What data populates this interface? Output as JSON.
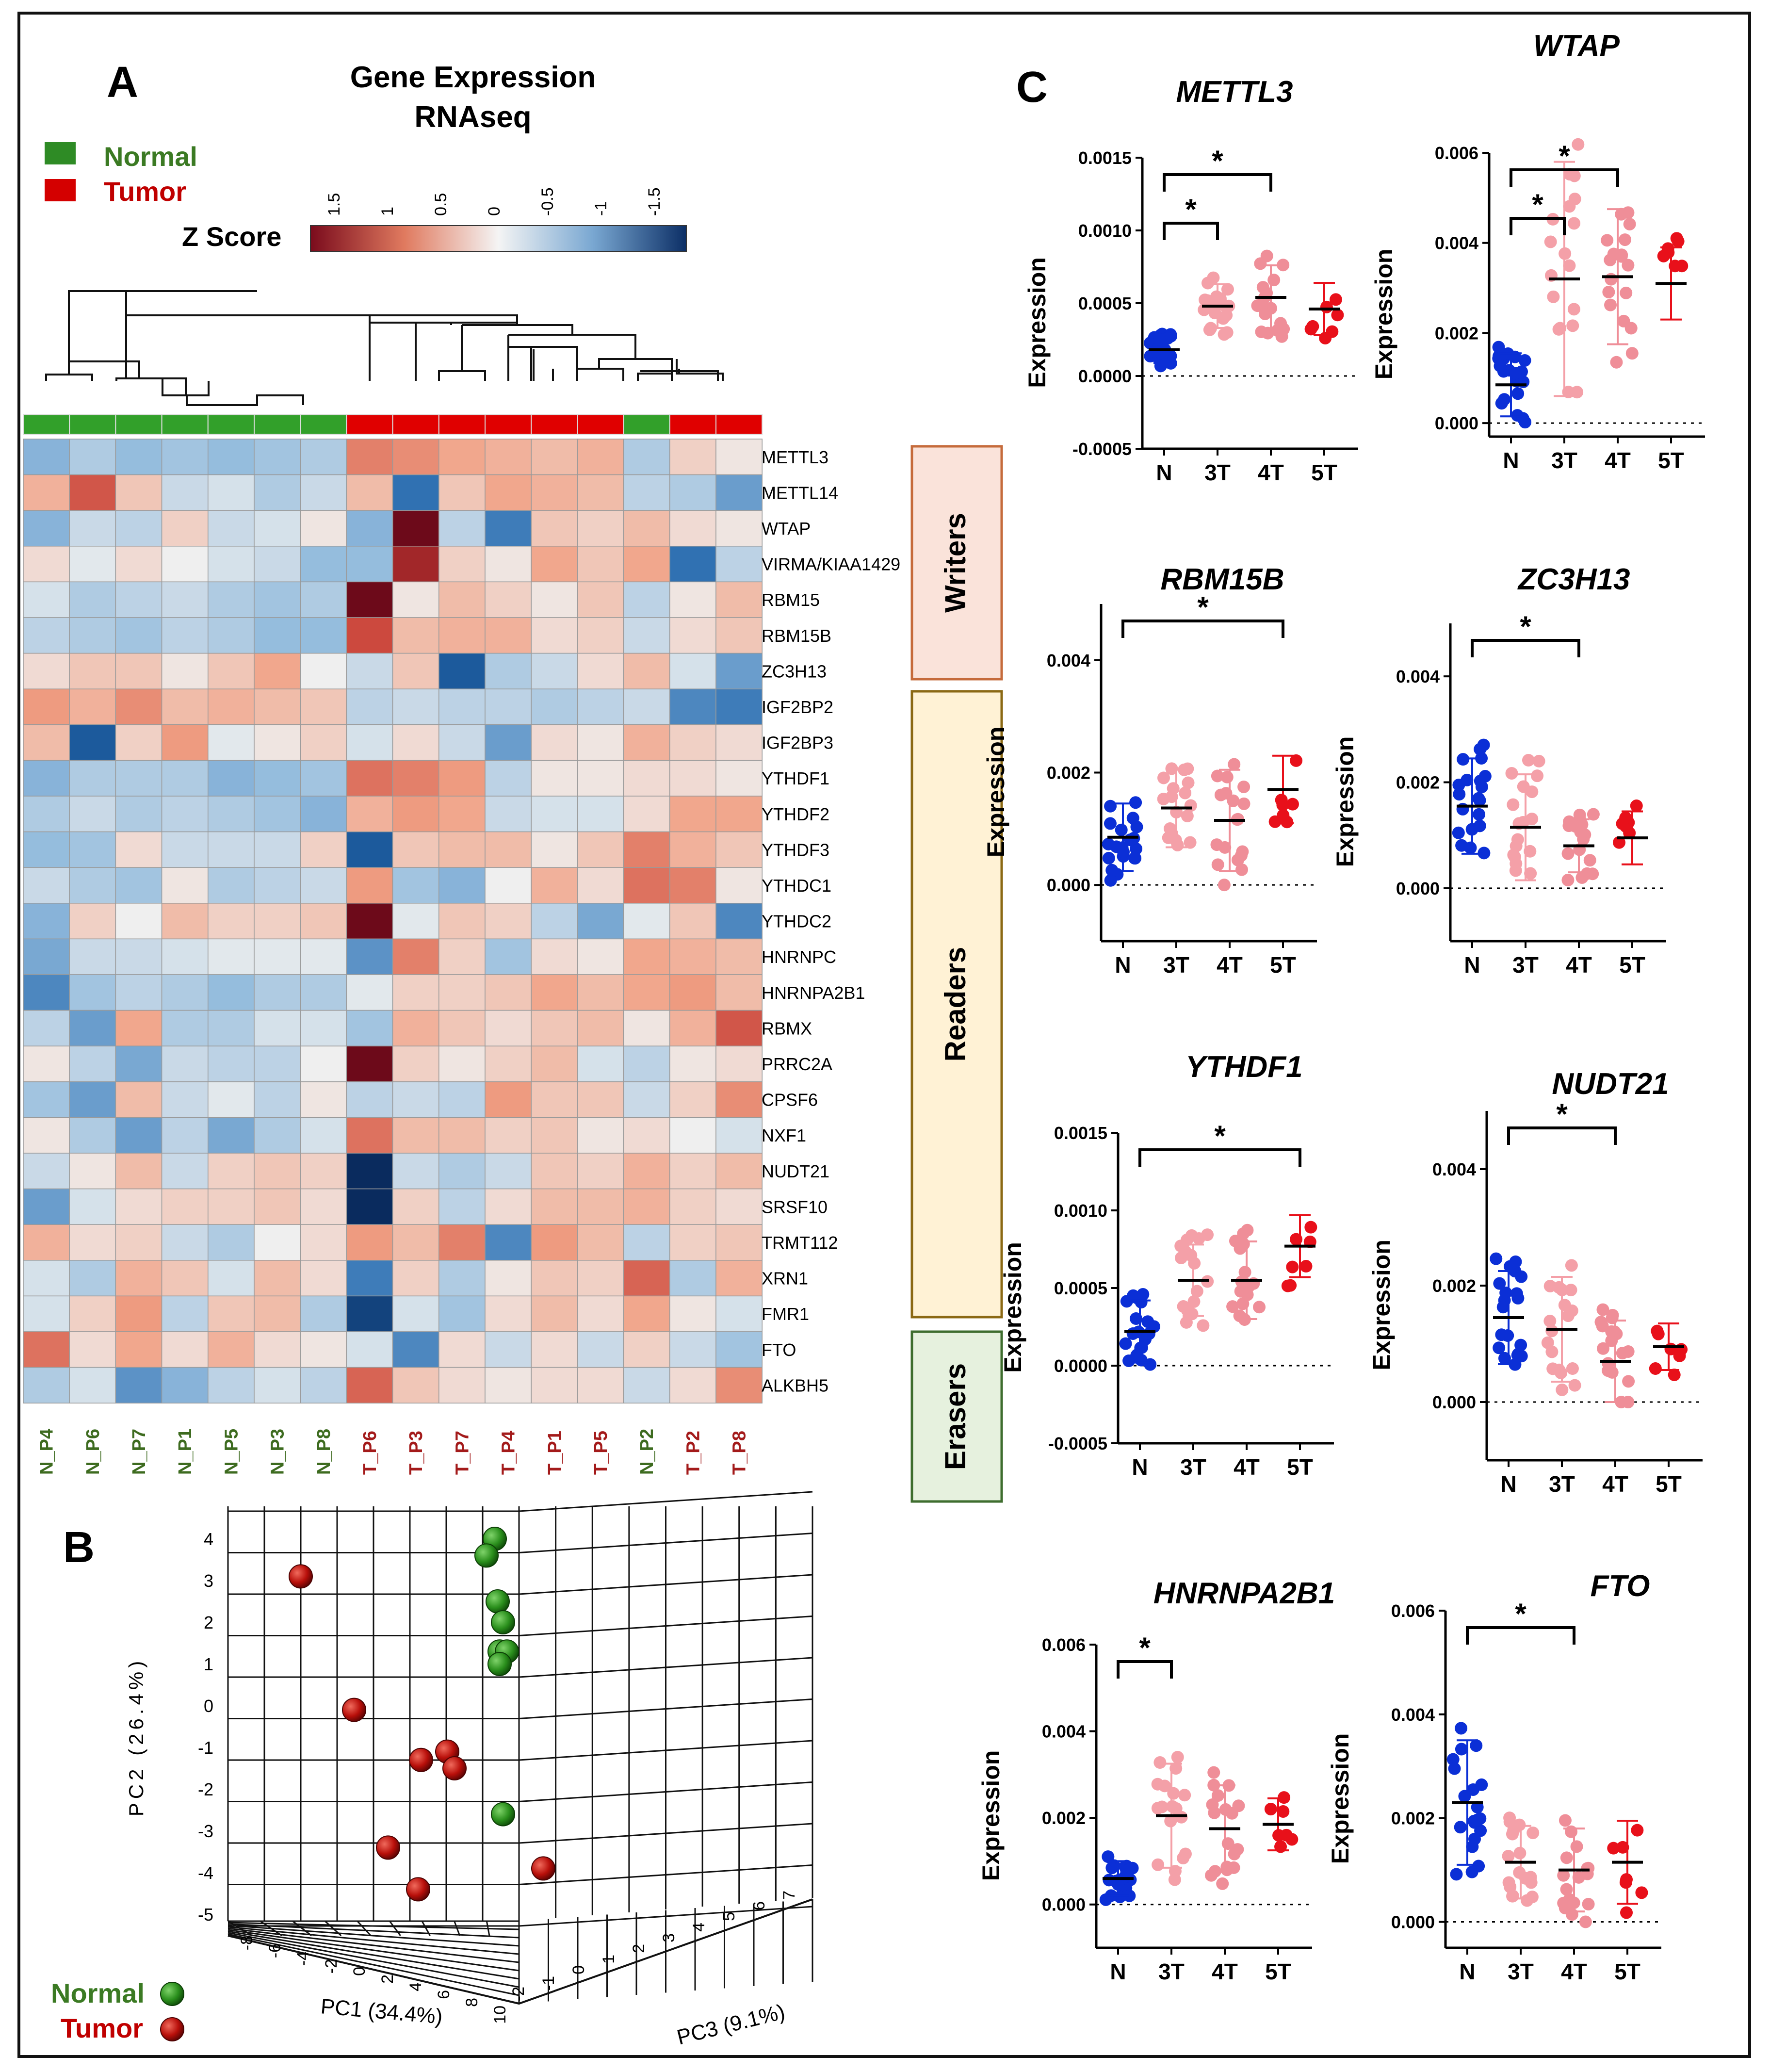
{
  "figure": {
    "panel_a_label": "A",
    "panel_b_label": "B",
    "panel_c_label": "C",
    "heatmap_title_line1": "Gene Expression",
    "heatmap_title_line2": "RNAseq",
    "legend_normal": "Normal",
    "legend_tumor": "Tumor",
    "zscore_label": "Z Score",
    "zscore_ticks": [
      "1.5",
      "1",
      "0.5",
      "0",
      "-0.5",
      "-1",
      "-1.5"
    ],
    "group_writers": "Writers",
    "group_readers": "Readers",
    "group_erasers": "Erasers",
    "colors": {
      "normal": "#2ca02c",
      "tumor": "#d00000",
      "n_dots": "#0b2fd6",
      "t3": "#f4a0a8",
      "t4": "#ef8e98",
      "t5": "#e8101a"
    }
  },
  "chart_data": [
    {
      "type": "heatmap",
      "title": "Gene Expression RNAseq",
      "genes": [
        "METTL3",
        "METTL14",
        "WTAP",
        "VIRMA/KIAA1429",
        "RBM15",
        "RBM15B",
        "ZC3H13",
        "IGF2BP2",
        "IGF2BP3",
        "YTHDF1",
        "YTHDF2",
        "YTHDF3",
        "YTHDC1",
        "YTHDC2",
        "HNRNPC",
        "HNRNPA2B1",
        "RBMX",
        "PRRC2A",
        "CPSF6",
        "NXF1",
        "NUDT21",
        "SRSF10",
        "TRMT112",
        "XRN1",
        "FMR1",
        "FTO",
        "ALKBH5"
      ],
      "samples": [
        "N_P4",
        "N_P6",
        "N_P7",
        "N_P1",
        "N_P5",
        "N_P3",
        "N_P8",
        "T_P6",
        "T_P3",
        "T_P7",
        "T_P4",
        "T_P1",
        "T_P5",
        "N_P2",
        "T_P2",
        "T_P8"
      ],
      "sample_groups": [
        "Normal",
        "Normal",
        "Normal",
        "Normal",
        "Normal",
        "Normal",
        "Normal",
        "Tumor",
        "Tumor",
        "Tumor",
        "Tumor",
        "Tumor",
        "Tumor",
        "Normal",
        "Tumor",
        "Tumor"
      ],
      "color_range": [
        -1.5,
        1.5
      ],
      "values": [
        [
          -0.8,
          -0.5,
          -0.7,
          -0.6,
          -0.7,
          -0.6,
          -0.5,
          1.0,
          0.9,
          0.7,
          0.6,
          0.5,
          0.6,
          -0.5,
          0.3,
          0.1
        ],
        [
          0.6,
          1.3,
          0.4,
          -0.3,
          -0.2,
          -0.5,
          -0.3,
          0.5,
          -1.4,
          0.4,
          0.7,
          0.6,
          0.5,
          -0.4,
          -0.5,
          -1.0
        ],
        [
          -0.8,
          -0.3,
          -0.4,
          0.3,
          -0.3,
          -0.2,
          0.1,
          -0.8,
          2.0,
          -0.4,
          -1.3,
          0.4,
          0.3,
          0.5,
          0.2,
          0.1
        ],
        [
          0.2,
          -0.1,
          0.2,
          0.0,
          -0.2,
          -0.3,
          -0.7,
          -0.7,
          1.7,
          0.3,
          0.1,
          0.7,
          0.4,
          0.7,
          -1.4,
          -0.4
        ],
        [
          -0.2,
          -0.5,
          -0.4,
          -0.3,
          -0.5,
          -0.6,
          -0.5,
          2.0,
          0.1,
          0.5,
          0.3,
          0.1,
          0.4,
          -0.4,
          0.1,
          0.5
        ],
        [
          -0.4,
          -0.5,
          -0.6,
          -0.4,
          -0.5,
          -0.7,
          -0.7,
          1.4,
          0.5,
          0.6,
          0.6,
          0.2,
          0.3,
          -0.3,
          0.2,
          0.4
        ],
        [
          0.2,
          0.4,
          0.4,
          0.1,
          0.4,
          0.7,
          0.0,
          -0.3,
          0.4,
          -1.6,
          -0.5,
          -0.3,
          0.2,
          0.5,
          -0.2,
          -1.0
        ],
        [
          0.8,
          0.6,
          0.9,
          0.5,
          0.6,
          0.5,
          0.4,
          -0.4,
          -0.3,
          -0.4,
          -0.4,
          -0.5,
          -0.4,
          -0.3,
          -1.2,
          -1.3
        ],
        [
          0.5,
          -1.6,
          0.3,
          0.8,
          -0.1,
          0.1,
          0.3,
          -0.2,
          0.2,
          -0.3,
          -1.0,
          0.2,
          0.1,
          0.6,
          0.3,
          0.2
        ],
        [
          -0.8,
          -0.5,
          -0.5,
          -0.5,
          -0.8,
          -0.7,
          -0.6,
          1.1,
          1.0,
          0.8,
          -0.4,
          0.1,
          0.1,
          0.2,
          0.2,
          0.1
        ],
        [
          -0.5,
          -0.3,
          -0.5,
          -0.4,
          -0.5,
          -0.6,
          -0.8,
          0.6,
          0.8,
          0.7,
          -0.3,
          -0.2,
          -0.2,
          0.2,
          0.7,
          0.7
        ],
        [
          -0.7,
          -0.6,
          0.2,
          -0.3,
          -0.3,
          -0.3,
          0.3,
          -1.6,
          0.4,
          0.5,
          0.5,
          0.1,
          0.4,
          1.0,
          0.6,
          0.4
        ],
        [
          -0.3,
          -0.5,
          -0.6,
          0.1,
          -0.5,
          -0.4,
          -0.3,
          0.8,
          -0.6,
          -0.8,
          0.0,
          0.6,
          0.2,
          1.1,
          1.0,
          0.1
        ],
        [
          -0.8,
          0.3,
          0.0,
          0.5,
          0.3,
          0.3,
          0.4,
          2.0,
          -0.1,
          0.4,
          0.3,
          -0.4,
          -0.9,
          -0.1,
          0.4,
          -1.2
        ],
        [
          -0.9,
          -0.3,
          -0.3,
          -0.2,
          -0.1,
          -0.1,
          -0.1,
          -1.1,
          1.0,
          0.3,
          -0.6,
          0.2,
          0.1,
          0.7,
          0.6,
          0.5
        ],
        [
          -1.2,
          -0.6,
          -0.4,
          -0.5,
          -0.7,
          -0.5,
          -0.5,
          -0.1,
          0.3,
          0.3,
          0.4,
          0.7,
          0.5,
          0.7,
          0.8,
          0.5
        ],
        [
          -0.4,
          -1.0,
          0.7,
          -0.5,
          -0.5,
          -0.2,
          -0.2,
          -0.6,
          0.6,
          0.4,
          0.2,
          0.4,
          0.5,
          0.1,
          0.6,
          1.3
        ],
        [
          0.1,
          -0.4,
          -0.9,
          -0.3,
          -0.4,
          -0.4,
          0.0,
          2.0,
          0.3,
          0.1,
          0.3,
          0.5,
          -0.2,
          -0.4,
          0.1,
          0.2
        ],
        [
          -0.6,
          -1.0,
          0.5,
          -0.3,
          -0.1,
          -0.4,
          0.1,
          -0.4,
          -0.3,
          -0.4,
          0.8,
          0.4,
          0.4,
          -0.3,
          0.3,
          0.9
        ],
        [
          0.1,
          -0.5,
          -1.0,
          -0.4,
          -0.9,
          -0.5,
          -0.2,
          1.1,
          0.5,
          0.5,
          0.3,
          0.4,
          0.1,
          0.2,
          0.0,
          -0.2
        ],
        [
          -0.3,
          0.1,
          0.5,
          -0.3,
          0.3,
          0.4,
          0.3,
          -2.0,
          -0.3,
          -0.5,
          -0.3,
          0.4,
          0.3,
          0.6,
          0.3,
          0.5
        ],
        [
          -1.0,
          -0.2,
          0.2,
          0.3,
          0.3,
          0.4,
          0.2,
          -2.0,
          0.3,
          -0.4,
          0.2,
          0.5,
          0.5,
          0.6,
          0.3,
          0.2
        ],
        [
          0.6,
          0.2,
          0.3,
          -0.3,
          -0.5,
          0.0,
          0.2,
          0.8,
          0.5,
          1.0,
          -1.2,
          0.8,
          0.5,
          -0.4,
          0.3,
          0.4
        ],
        [
          -0.2,
          -0.5,
          0.6,
          0.4,
          -0.2,
          0.5,
          0.2,
          -1.3,
          0.3,
          -0.5,
          0.1,
          0.4,
          0.3,
          1.2,
          -0.5,
          0.6
        ],
        [
          -0.2,
          0.3,
          0.8,
          -0.4,
          0.4,
          0.5,
          -0.5,
          -1.8,
          -0.2,
          -0.6,
          0.2,
          0.5,
          0.2,
          0.7,
          0.1,
          -0.2
        ],
        [
          1.1,
          0.2,
          0.7,
          0.2,
          0.6,
          0.2,
          0.1,
          -0.2,
          -1.2,
          0.2,
          -0.3,
          0.2,
          -0.3,
          0.3,
          -0.3,
          -0.6
        ],
        [
          -0.5,
          -0.2,
          -1.1,
          -0.8,
          -0.4,
          -0.2,
          -0.4,
          1.2,
          0.4,
          0.2,
          0.1,
          0.2,
          0.2,
          -0.3,
          0.2,
          0.9
        ]
      ]
    },
    {
      "type": "scatter",
      "title": "PCA 3D",
      "xlabel": "PC1 (34.4%)",
      "ylabel": "PC2 (26.4%)",
      "zlabel": "PC3 (9.1%)",
      "y_ticks": [
        "4",
        "3",
        "2",
        "1",
        "0",
        "-1",
        "-2",
        "-3",
        "-4",
        "-5"
      ],
      "pc1_ticks": [
        "-8",
        "-6",
        "-4",
        "-2",
        "0",
        "2",
        "4",
        "6",
        "8",
        "10"
      ],
      "pc3_ticks": [
        "-2",
        "-1",
        "0",
        "1",
        "2",
        "3",
        "4",
        "5",
        "6",
        "7"
      ],
      "series": [
        {
          "name": "Normal",
          "pc2": [
            4.0,
            3.6,
            2.5,
            2.0,
            1.3,
            1.3,
            1.0,
            -2.6
          ]
        },
        {
          "name": "Tumor",
          "pc2": [
            3.1,
            -0.1,
            -1.1,
            -1.3,
            -1.5,
            -3.4,
            -3.9,
            -4.4
          ]
        }
      ],
      "legend": [
        "Normal",
        "Tumor"
      ]
    },
    {
      "type": "scatter",
      "ylabel": "Expression",
      "categories": [
        "N",
        "3T",
        "4T",
        "5T"
      ],
      "panels": [
        {
          "title": "METTL3",
          "yticks": [
            "0.0015",
            "0.0010",
            "0.0005",
            "0.0000",
            "-0.0005"
          ],
          "ylim": [
            -0.0005,
            0.0015
          ],
          "means": [
            0.00018,
            0.00048,
            0.00054,
            0.00046
          ],
          "sd": [
            9e-05,
            0.00015,
            0.00022,
            0.00018
          ],
          "sig": [
            {
              "from": "N",
              "to": "3T",
              "label": "*"
            },
            {
              "from": "N",
              "to": "4T",
              "label": "*"
            }
          ]
        },
        {
          "title": "WTAP",
          "yticks": [
            "0.006",
            "0.004",
            "0.002",
            "0.000"
          ],
          "ylim": [
            -0.0003,
            0.006
          ],
          "means": [
            0.00085,
            0.0032,
            0.00325,
            0.0031
          ],
          "sd": [
            0.0007,
            0.0026,
            0.0015,
            0.0008
          ],
          "sig": [
            {
              "from": "N",
              "to": "3T",
              "label": "*"
            },
            {
              "from": "N",
              "to": "4T",
              "label": "*"
            }
          ]
        },
        {
          "title": "RBM15B",
          "yticks": [
            "0.004",
            "0.002",
            "0.000"
          ],
          "ylim": [
            -0.001,
            0.005
          ],
          "means": [
            0.00085,
            0.00137,
            0.00115,
            0.0017
          ],
          "sd": [
            0.0006,
            0.0007,
            0.0009,
            0.0006
          ],
          "sig": [
            {
              "from": "N",
              "to": "5T",
              "label": "*"
            }
          ]
        },
        {
          "title": "ZC3H13",
          "yticks": [
            "0.004",
            "0.002",
            "0.000"
          ],
          "ylim": [
            -0.001,
            0.005
          ],
          "means": [
            0.00155,
            0.00115,
            0.0008,
            0.00095
          ],
          "sd": [
            0.0009,
            0.001,
            0.0005,
            0.0005
          ],
          "sig": [
            {
              "from": "N",
              "to": "4T",
              "label": "*"
            }
          ]
        },
        {
          "title": "YTHDF1",
          "yticks": [
            "0.0015",
            "0.0010",
            "0.0005",
            "0.0000",
            "-0.0005"
          ],
          "ylim": [
            -0.0005,
            0.0015
          ],
          "means": [
            0.00022,
            0.00055,
            0.00055,
            0.00077
          ],
          "sd": [
            0.0002,
            0.00023,
            0.00025,
            0.0002
          ],
          "sig": [
            {
              "from": "N",
              "to": "5T",
              "label": "*"
            }
          ]
        },
        {
          "title": "NUDT21",
          "yticks": [
            "0.004",
            "0.002",
            "0.000"
          ],
          "ylim": [
            -0.001,
            0.005
          ],
          "means": [
            0.00145,
            0.00125,
            0.0007,
            0.00095
          ],
          "sd": [
            0.0008,
            0.0009,
            0.0007,
            0.0004
          ],
          "sig": [
            {
              "from": "N",
              "to": "4T",
              "label": "*"
            }
          ]
        },
        {
          "title": "HNRNPA2B1",
          "yticks": [
            "0.006",
            "0.004",
            "0.002",
            "0.000"
          ],
          "ylim": [
            -0.001,
            0.006
          ],
          "means": [
            0.0006,
            0.00205,
            0.00175,
            0.00185
          ],
          "sd": [
            0.0004,
            0.0012,
            0.001,
            0.0006
          ],
          "sig": [
            {
              "from": "N",
              "to": "3T",
              "label": "*"
            }
          ]
        },
        {
          "title": "FTO",
          "yticks": [
            "0.006",
            "0.004",
            "0.002",
            "0.000"
          ],
          "ylim": [
            -0.0005,
            0.006
          ],
          "means": [
            0.0023,
            0.00115,
            0.001,
            0.00115
          ],
          "sd": [
            0.0012,
            0.0007,
            0.0008,
            0.0008
          ],
          "sig": [
            {
              "from": "N",
              "to": "4T",
              "label": "*"
            }
          ]
        }
      ]
    }
  ]
}
